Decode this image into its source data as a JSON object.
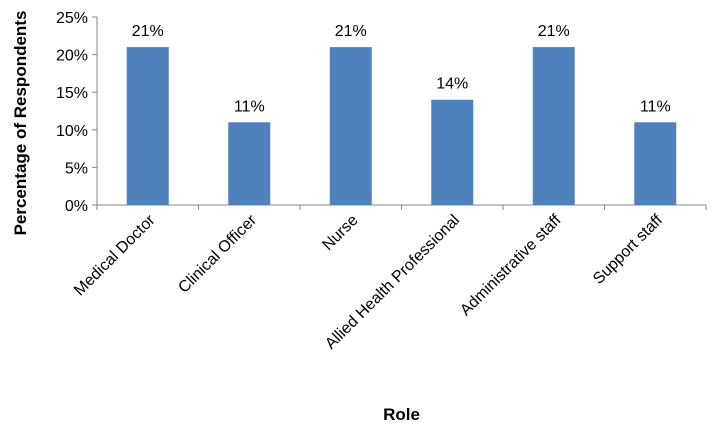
{
  "chart_data": {
    "type": "bar",
    "title": "",
    "xlabel": "Role",
    "ylabel": "Percentage of Respondents",
    "categories": [
      "Medical Doctor",
      "Clinical Officer",
      "Nurse",
      "Allied Health Professional",
      "Administrative staff",
      "Support staff"
    ],
    "values": [
      21,
      11,
      21,
      14,
      21,
      11
    ],
    "data_labels": [
      "21%",
      "11%",
      "21%",
      "14%",
      "21%",
      "11%"
    ],
    "y_ticks": [
      "0%",
      "5%",
      "10%",
      "15%",
      "20%",
      "25%"
    ],
    "ylim": [
      0,
      25
    ],
    "grid": false,
    "legend": "none",
    "bar_color": "#4f81bd"
  }
}
